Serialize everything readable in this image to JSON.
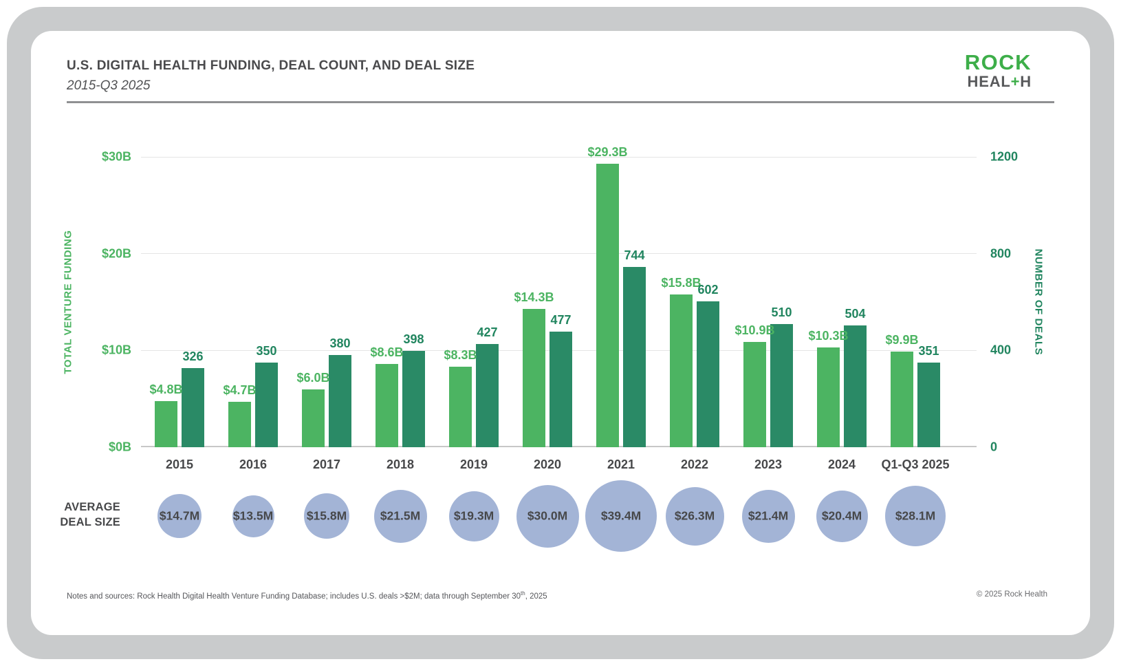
{
  "header": {
    "title": "U.S. DIGITAL HEALTH FUNDING, DEAL COUNT, AND DEAL SIZE",
    "subtitle": "2015-Q3 2025",
    "logo": {
      "rock": "ROCK",
      "heal": "HEAL",
      "plus": "+",
      "h": "H"
    }
  },
  "chart_data": {
    "type": "bar",
    "title": "U.S. Digital Health Funding, Deal Count, and Deal Size, 2015-Q3 2025",
    "categories": [
      "2015",
      "2016",
      "2017",
      "2018",
      "2019",
      "2020",
      "2021",
      "2022",
      "2023",
      "2024",
      "Q1-Q3 2025"
    ],
    "series": [
      {
        "name": "Total venture funding ($B)",
        "values": [
          4.8,
          4.7,
          6.0,
          8.6,
          8.3,
          14.3,
          29.3,
          15.8,
          10.9,
          10.3,
          9.9
        ],
        "labels": [
          "$4.8B",
          "$4.7B",
          "$6.0B",
          "$8.6B",
          "$8.3B",
          "$14.3B",
          "$29.3B",
          "$15.8B",
          "$10.9B",
          "$10.3B",
          "$9.9B"
        ],
        "color": "#4cb462",
        "label_color": "#4cb462"
      },
      {
        "name": "Number of deals",
        "values": [
          326,
          350,
          380,
          398,
          427,
          477,
          744,
          602,
          510,
          504,
          351
        ],
        "labels": [
          "326",
          "350",
          "380",
          "398",
          "427",
          "477",
          "744",
          "602",
          "510",
          "504",
          "351"
        ],
        "color": "#2a8a66",
        "label_color": "#21855f"
      }
    ],
    "left_axis": {
      "label": "TOTAL VENTURE FUNDING",
      "ticks": [
        "$0B",
        "$10B",
        "$20B",
        "$30B"
      ],
      "range": [
        0,
        30
      ],
      "grid": true
    },
    "right_axis": {
      "label": "NUMBER OF DEALS",
      "ticks": [
        "0",
        "400",
        "800",
        "1200"
      ],
      "range": [
        0,
        1200
      ]
    },
    "bubbles": {
      "label_line1": "AVERAGE",
      "label_line2": "DEAL SIZE",
      "values_m": [
        14.7,
        13.5,
        15.8,
        21.5,
        19.3,
        30.0,
        39.4,
        26.3,
        21.4,
        20.4,
        28.1
      ],
      "labels": [
        "$14.7M",
        "$13.5M",
        "$15.8M",
        "$21.5M",
        "$19.3M",
        "$30.0M",
        "$39.4M",
        "$26.3M",
        "$21.4M",
        "$20.4M",
        "$28.1M"
      ],
      "color": "#a3b4d6"
    },
    "legend_position": "none"
  },
  "footer": {
    "notes_prefix": "Notes and sources: Rock Health Digital Health Venture Funding Database; includes U.S. deals >$2M; data through September 30",
    "notes_sup": "th",
    "notes_suffix": ", 2025",
    "copyright": "© 2025 Rock Health"
  },
  "colors": {
    "funding_green": "#4cb462",
    "deals_green": "#2a8a66",
    "deals_text_green": "#21855f",
    "bubble_blue": "#a3b4d6",
    "logo_green": "#3dae49",
    "logo_gray": "#58595b",
    "frame_gray": "#c9cbcc",
    "text_gray": "#4a4a4c"
  }
}
